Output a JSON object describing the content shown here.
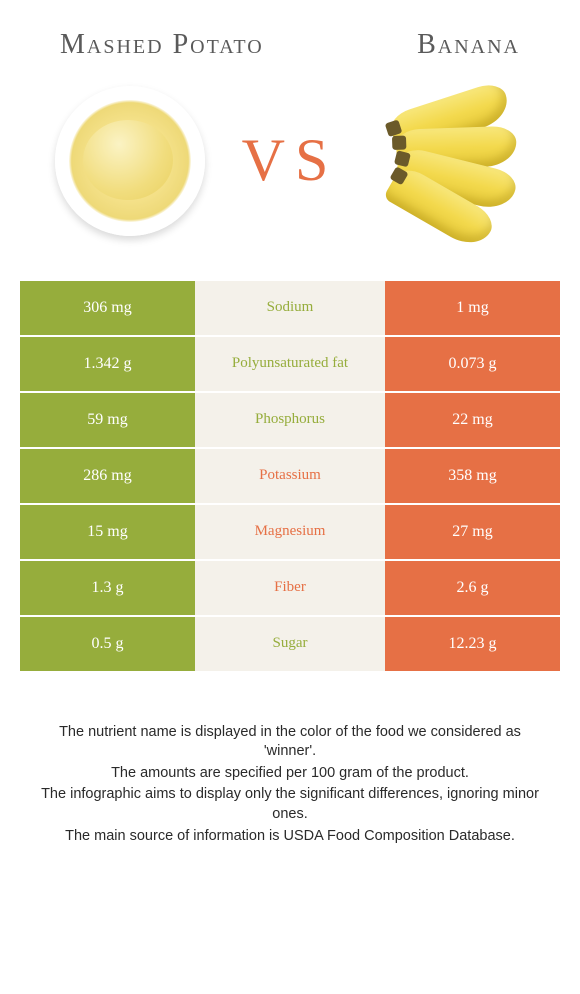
{
  "colors": {
    "left_food": "#96ad3c",
    "right_food": "#e67045",
    "nutrient_bg": "#f4f1ea",
    "vs_text": "#e67045",
    "title_text": "#5a5a5a"
  },
  "foods": {
    "left": {
      "name": "Mashed Potato"
    },
    "right": {
      "name": "Banana"
    }
  },
  "vs_label": "VS",
  "rows": [
    {
      "nutrient": "Sodium",
      "left": "306 mg",
      "right": "1 mg",
      "winner": "left"
    },
    {
      "nutrient": "Polyunsaturated fat",
      "left": "1.342 g",
      "right": "0.073 g",
      "winner": "left"
    },
    {
      "nutrient": "Phosphorus",
      "left": "59 mg",
      "right": "22 mg",
      "winner": "left"
    },
    {
      "nutrient": "Potassium",
      "left": "286 mg",
      "right": "358 mg",
      "winner": "right"
    },
    {
      "nutrient": "Magnesium",
      "left": "15 mg",
      "right": "27 mg",
      "winner": "right"
    },
    {
      "nutrient": "Fiber",
      "left": "1.3 g",
      "right": "2.6 g",
      "winner": "right"
    },
    {
      "nutrient": "Sugar",
      "left": "0.5 g",
      "right": "12.23 g",
      "winner": "left"
    }
  ],
  "notes": [
    "The nutrient name is displayed in the color of the food we considered as 'winner'.",
    "The amounts are specified per 100 gram of the product.",
    "The infographic aims to display only the significant differences, ignoring minor ones.",
    "The main source of information is USDA Food Composition Database."
  ]
}
